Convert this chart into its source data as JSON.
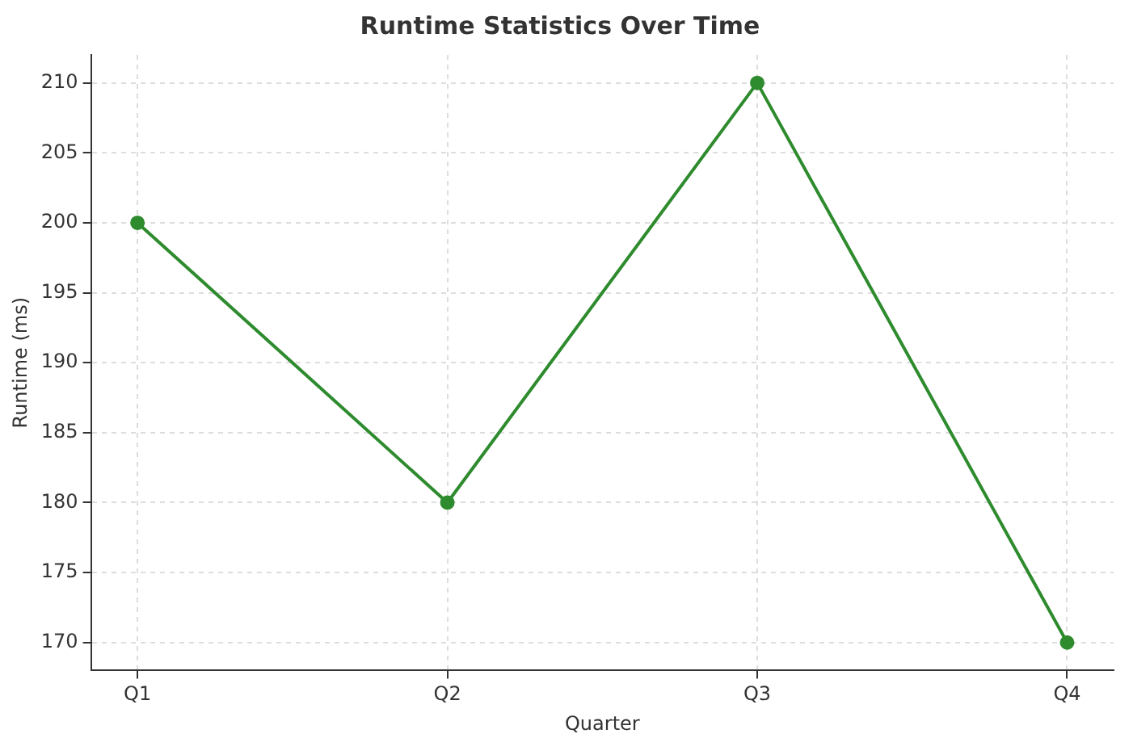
{
  "chart_data": {
    "type": "line",
    "title": "Runtime Statistics Over Time",
    "xlabel": "Quarter",
    "ylabel": "Runtime (ms)",
    "categories": [
      "Q1",
      "Q2",
      "Q3",
      "Q4"
    ],
    "series": [
      {
        "color": "#2e8b2e",
        "values": [
          200,
          180,
          210,
          170
        ]
      }
    ],
    "ylim": [
      168,
      212
    ],
    "yticks": [
      170,
      175,
      180,
      185,
      190,
      195,
      200,
      205,
      210
    ],
    "grid": true,
    "marker": "circle",
    "line_style": "solid",
    "legend": false
  }
}
